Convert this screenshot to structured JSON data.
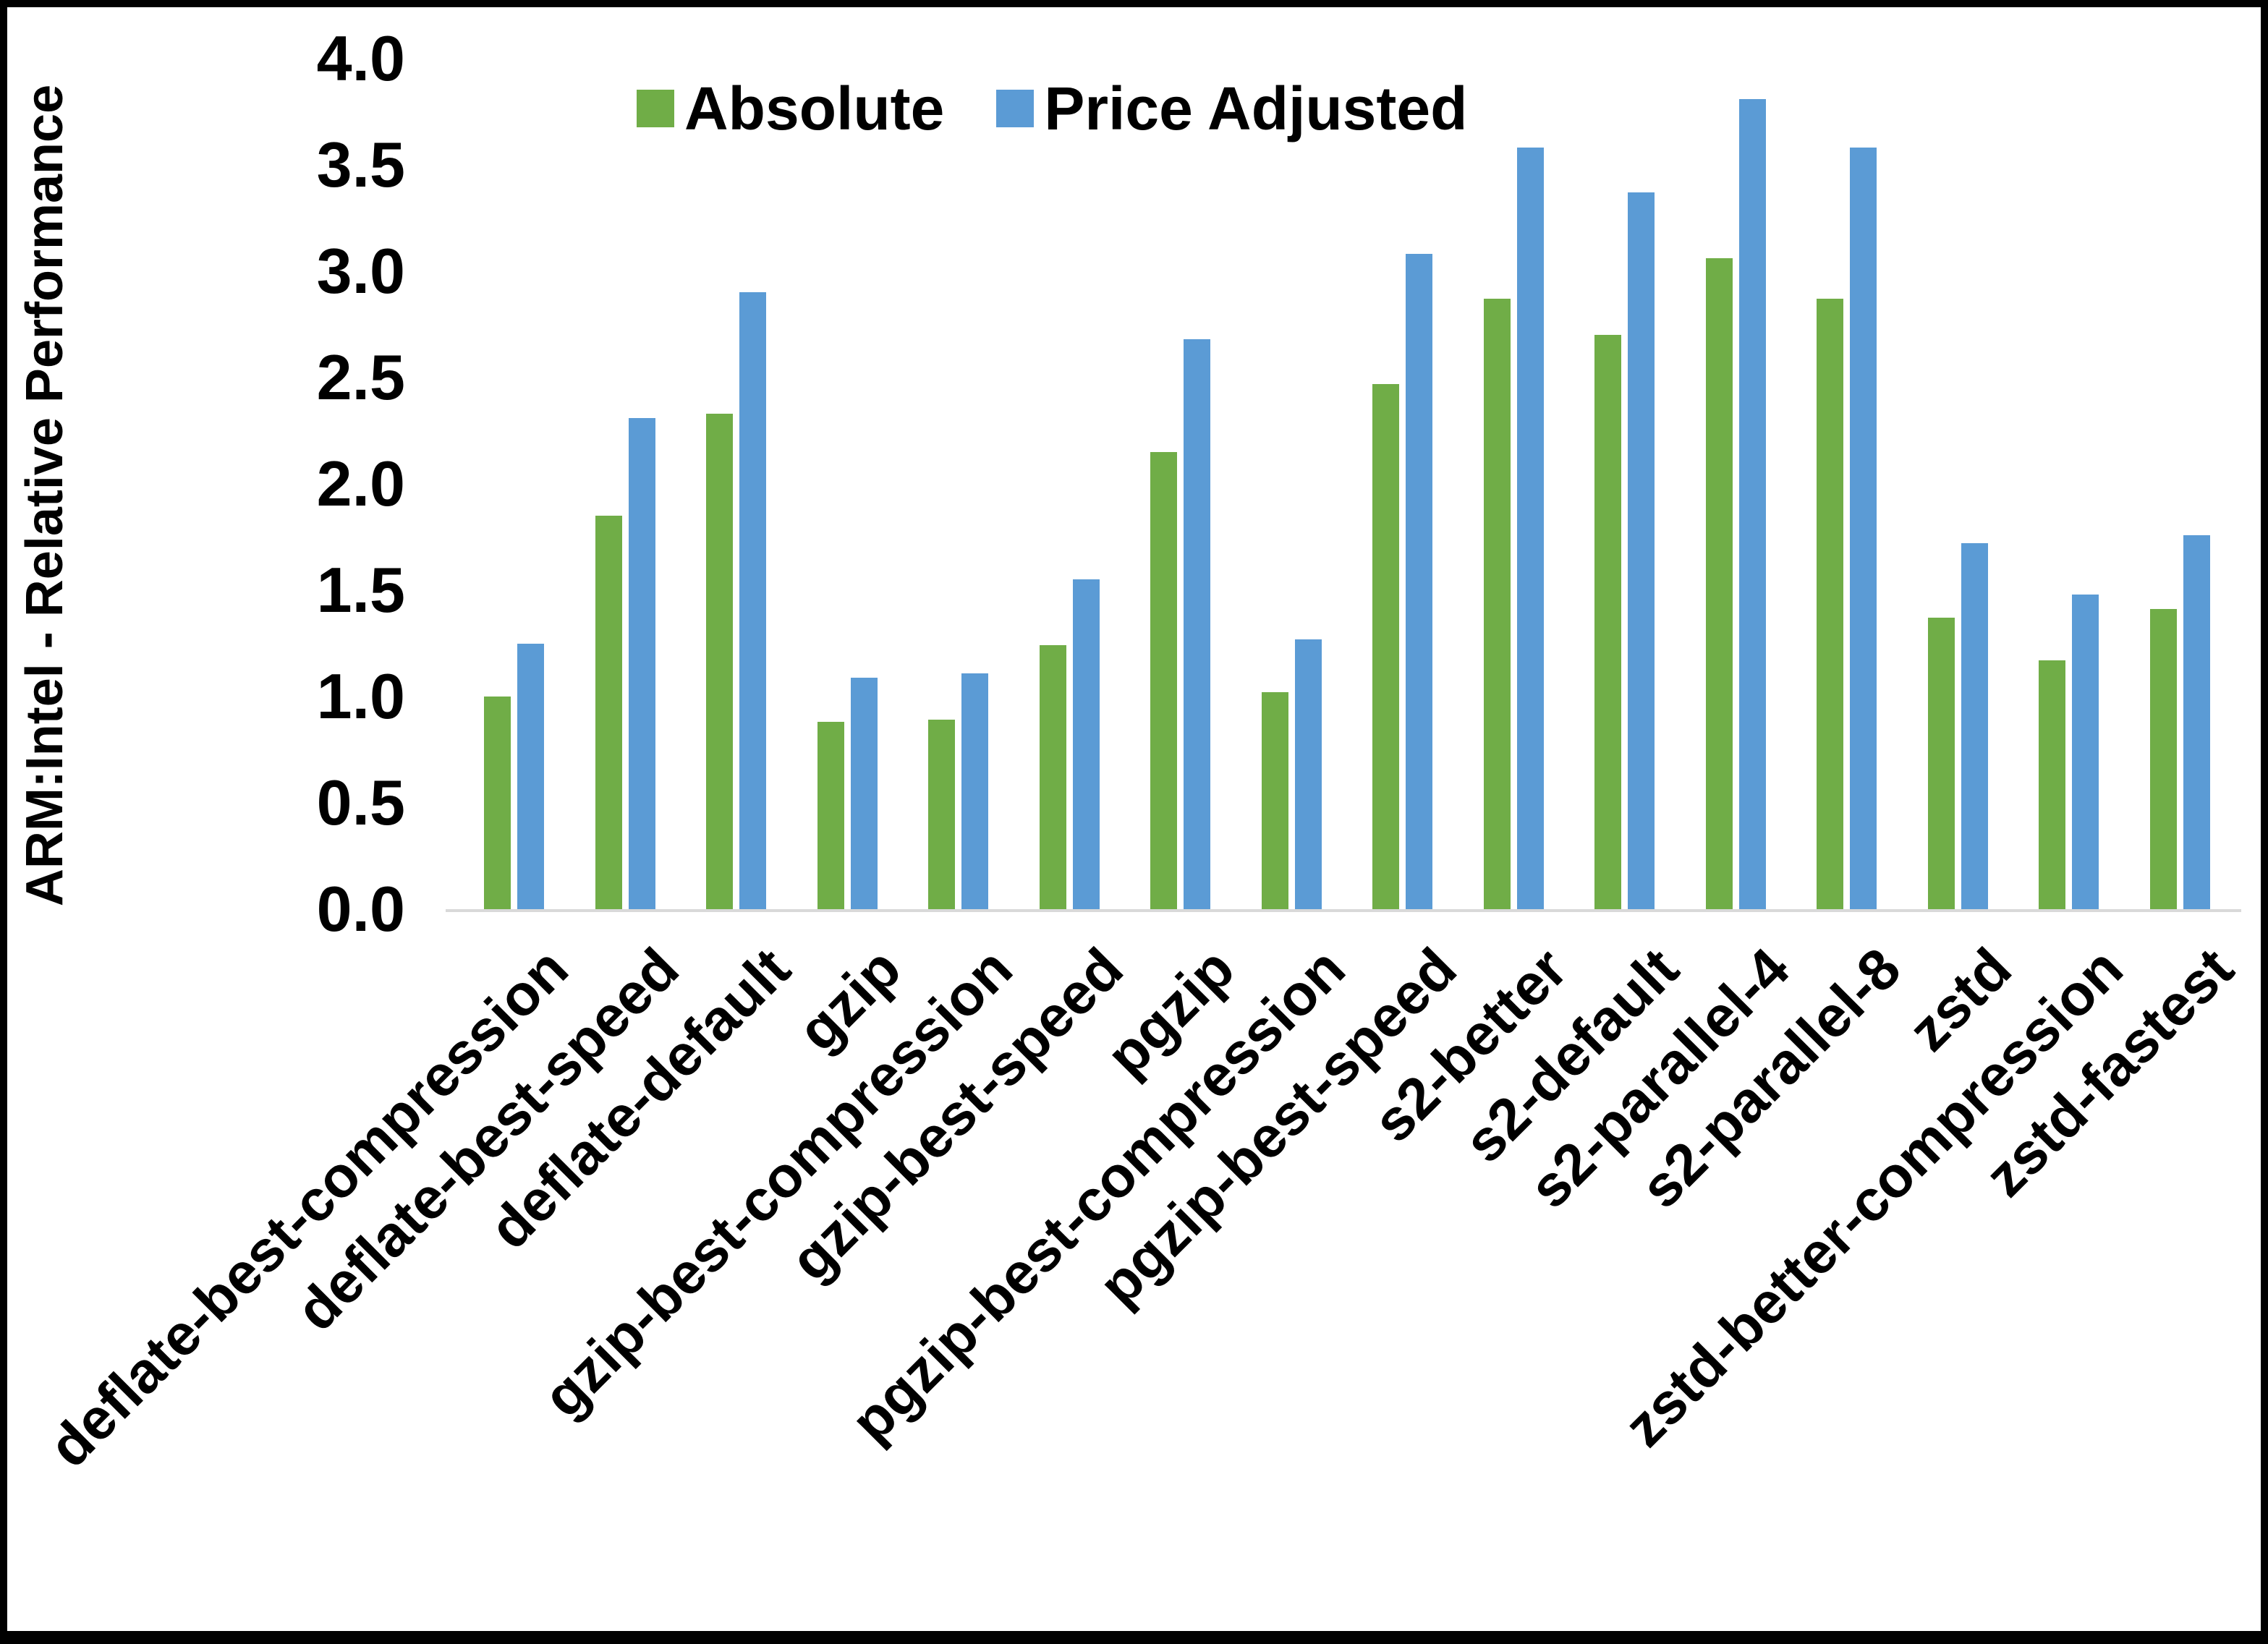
{
  "frame": {
    "border_color": "#000000",
    "background": "#ffffff"
  },
  "y_axis": {
    "title": "ARM:Intel - Relative Performance",
    "tick_labels": [
      "4.0",
      "3.5",
      "3.0",
      "2.5",
      "2.0",
      "1.5",
      "1.0",
      "0.5",
      "0.0"
    ],
    "min": 0.0,
    "max": 4.0,
    "step": 0.5,
    "axis_line_color": "#d9d9d9"
  },
  "chart_data": {
    "type": "bar",
    "title": "",
    "xlabel": "",
    "ylabel": "ARM:Intel - Relative Performance",
    "ylim": [
      0.0,
      4.0
    ],
    "grid": false,
    "legend_position": "top",
    "categories": [
      "deflate-best-compression",
      "deflate-best-speed",
      "deflate-default",
      "gzip",
      "gzip-best-compression",
      "gzip-best-speed",
      "pgzip",
      "pgzip-best-compression",
      "pgzip-best-speed",
      "s2-better",
      "s2-default",
      "s2-parallel-4",
      "s2-parallel-8",
      "zstd",
      "zstd-better-compression",
      "zstd-fastest"
    ],
    "series": [
      {
        "name": "Absolute",
        "color": "#70AD47",
        "values": [
          1.0,
          1.85,
          2.33,
          0.88,
          0.89,
          1.24,
          2.15,
          1.02,
          2.47,
          2.87,
          2.7,
          3.06,
          2.87,
          1.37,
          1.17,
          1.41
        ]
      },
      {
        "name": "Price Adjusted",
        "color": "#5B9BD5",
        "values": [
          1.25,
          2.31,
          2.9,
          1.09,
          1.11,
          1.55,
          2.68,
          1.27,
          3.08,
          3.58,
          3.37,
          3.81,
          3.58,
          1.72,
          1.48,
          1.76
        ]
      }
    ]
  }
}
